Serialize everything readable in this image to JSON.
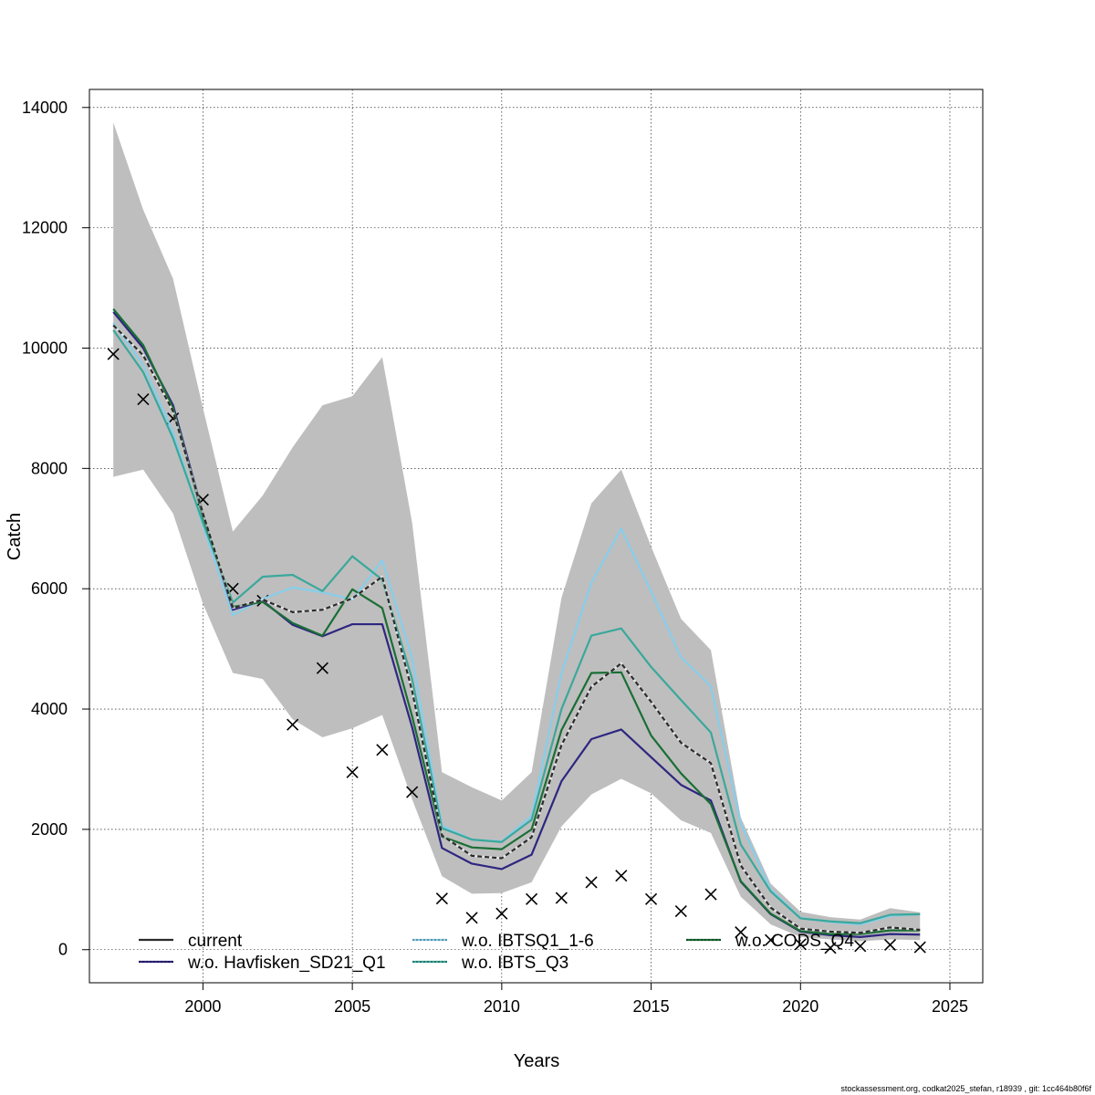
{
  "chart_data": {
    "type": "line",
    "xlabel": "Years",
    "ylabel": "Catch",
    "xlim": [
      1996.2,
      2026.1
    ],
    "ylim": [
      -550,
      14300
    ],
    "xticks": [
      2000,
      2005,
      2010,
      2015,
      2020,
      2025
    ],
    "yticks": [
      0,
      2000,
      4000,
      6000,
      8000,
      10000,
      12000,
      14000
    ],
    "grid": true,
    "x": [
      1997,
      1998,
      1999,
      2000,
      2001,
      2002,
      2003,
      2004,
      2005,
      2006,
      2007,
      2008,
      2009,
      2010,
      2011,
      2012,
      2013,
      2014,
      2015,
      2016,
      2017,
      2018,
      2019,
      2020,
      2021,
      2022,
      2023,
      2024
    ],
    "ci_band": {
      "color": "#bebebe",
      "upper": [
        13750,
        12300,
        11150,
        9000,
        6950,
        7550,
        8350,
        9050,
        9200,
        9850,
        7100,
        2950,
        2700,
        2480,
        2950,
        5850,
        7420,
        7980,
        6700,
        5500,
        4980,
        2200,
        1100,
        630,
        540,
        500,
        690,
        620
      ],
      "lower": [
        7860,
        7980,
        7250,
        5750,
        4600,
        4500,
        3830,
        3530,
        3680,
        3900,
        2500,
        1220,
        930,
        940,
        1120,
        2050,
        2580,
        2840,
        2600,
        2150,
        1940,
        880,
        420,
        210,
        170,
        140,
        170,
        160
      ]
    },
    "points": {
      "name": "observed",
      "marker": "x",
      "values": [
        9900,
        9150,
        8830,
        7480,
        6000,
        5800,
        3740,
        4680,
        2950,
        3320,
        2620,
        850,
        530,
        600,
        840,
        860,
        1120,
        1230,
        840,
        640,
        920,
        290,
        160,
        90,
        30,
        60,
        80,
        40
      ]
    },
    "series": [
      {
        "name": "current",
        "color": "#2b2b2b",
        "dashed": true,
        "values": [
          10380,
          9880,
          8950,
          7250,
          5680,
          5820,
          5610,
          5650,
          5840,
          6200,
          4300,
          1900,
          1560,
          1520,
          1870,
          3400,
          4370,
          4760,
          4120,
          3440,
          3100,
          1400,
          700,
          350,
          300,
          280,
          370,
          330
        ]
      },
      {
        "name": "w.o. Havfisken_SD21_Q1",
        "color": "#2e2680",
        "dashed": false,
        "values": [
          10600,
          10000,
          9050,
          7250,
          5650,
          5800,
          5400,
          5210,
          5410,
          5410,
          3700,
          1690,
          1430,
          1340,
          1580,
          2800,
          3500,
          3660,
          3200,
          2740,
          2480,
          1130,
          590,
          300,
          240,
          210,
          260,
          250
        ]
      },
      {
        "name": "w.o. IBTSQ1_1-6",
        "color": "#87ceeb",
        "dashed": false,
        "values": [
          10420,
          9720,
          8600,
          7050,
          5560,
          5830,
          6020,
          5940,
          5820,
          6470,
          4850,
          2060,
          1830,
          1800,
          2220,
          4600,
          6100,
          7000,
          5950,
          4860,
          4380,
          2100,
          1000,
          530,
          460,
          420,
          560,
          590
        ]
      },
      {
        "name": "w.o. IBTS_Q3",
        "color": "#3aa89b",
        "dashed": false,
        "values": [
          10300,
          9600,
          8500,
          7100,
          5770,
          6200,
          6230,
          5960,
          6540,
          6150,
          4500,
          2020,
          1830,
          1790,
          2160,
          4000,
          5220,
          5340,
          4700,
          4150,
          3610,
          1750,
          970,
          520,
          470,
          440,
          580,
          590
        ]
      },
      {
        "name": "w.o. CODS_Q4",
        "color": "#1a6e35",
        "dashed": false,
        "values": [
          10650,
          10050,
          9000,
          7200,
          5700,
          5780,
          5430,
          5220,
          5990,
          5680,
          3880,
          1880,
          1700,
          1670,
          2000,
          3650,
          4600,
          4610,
          3560,
          2930,
          2420,
          1140,
          600,
          310,
          260,
          260,
          320,
          320
        ]
      }
    ],
    "legend": {
      "placement": "bottom",
      "columns": [
        [
          "current",
          "w.o. Havfisken_SD21_Q1"
        ],
        [
          "w.o. IBTSQ1_1-6",
          "w.o. IBTS_Q3"
        ],
        [
          "w.o. CODS_Q4"
        ]
      ]
    }
  },
  "footer": "stockassessment.org, codkat2025_stefan, r18939 , git: 1cc464b80f6f"
}
